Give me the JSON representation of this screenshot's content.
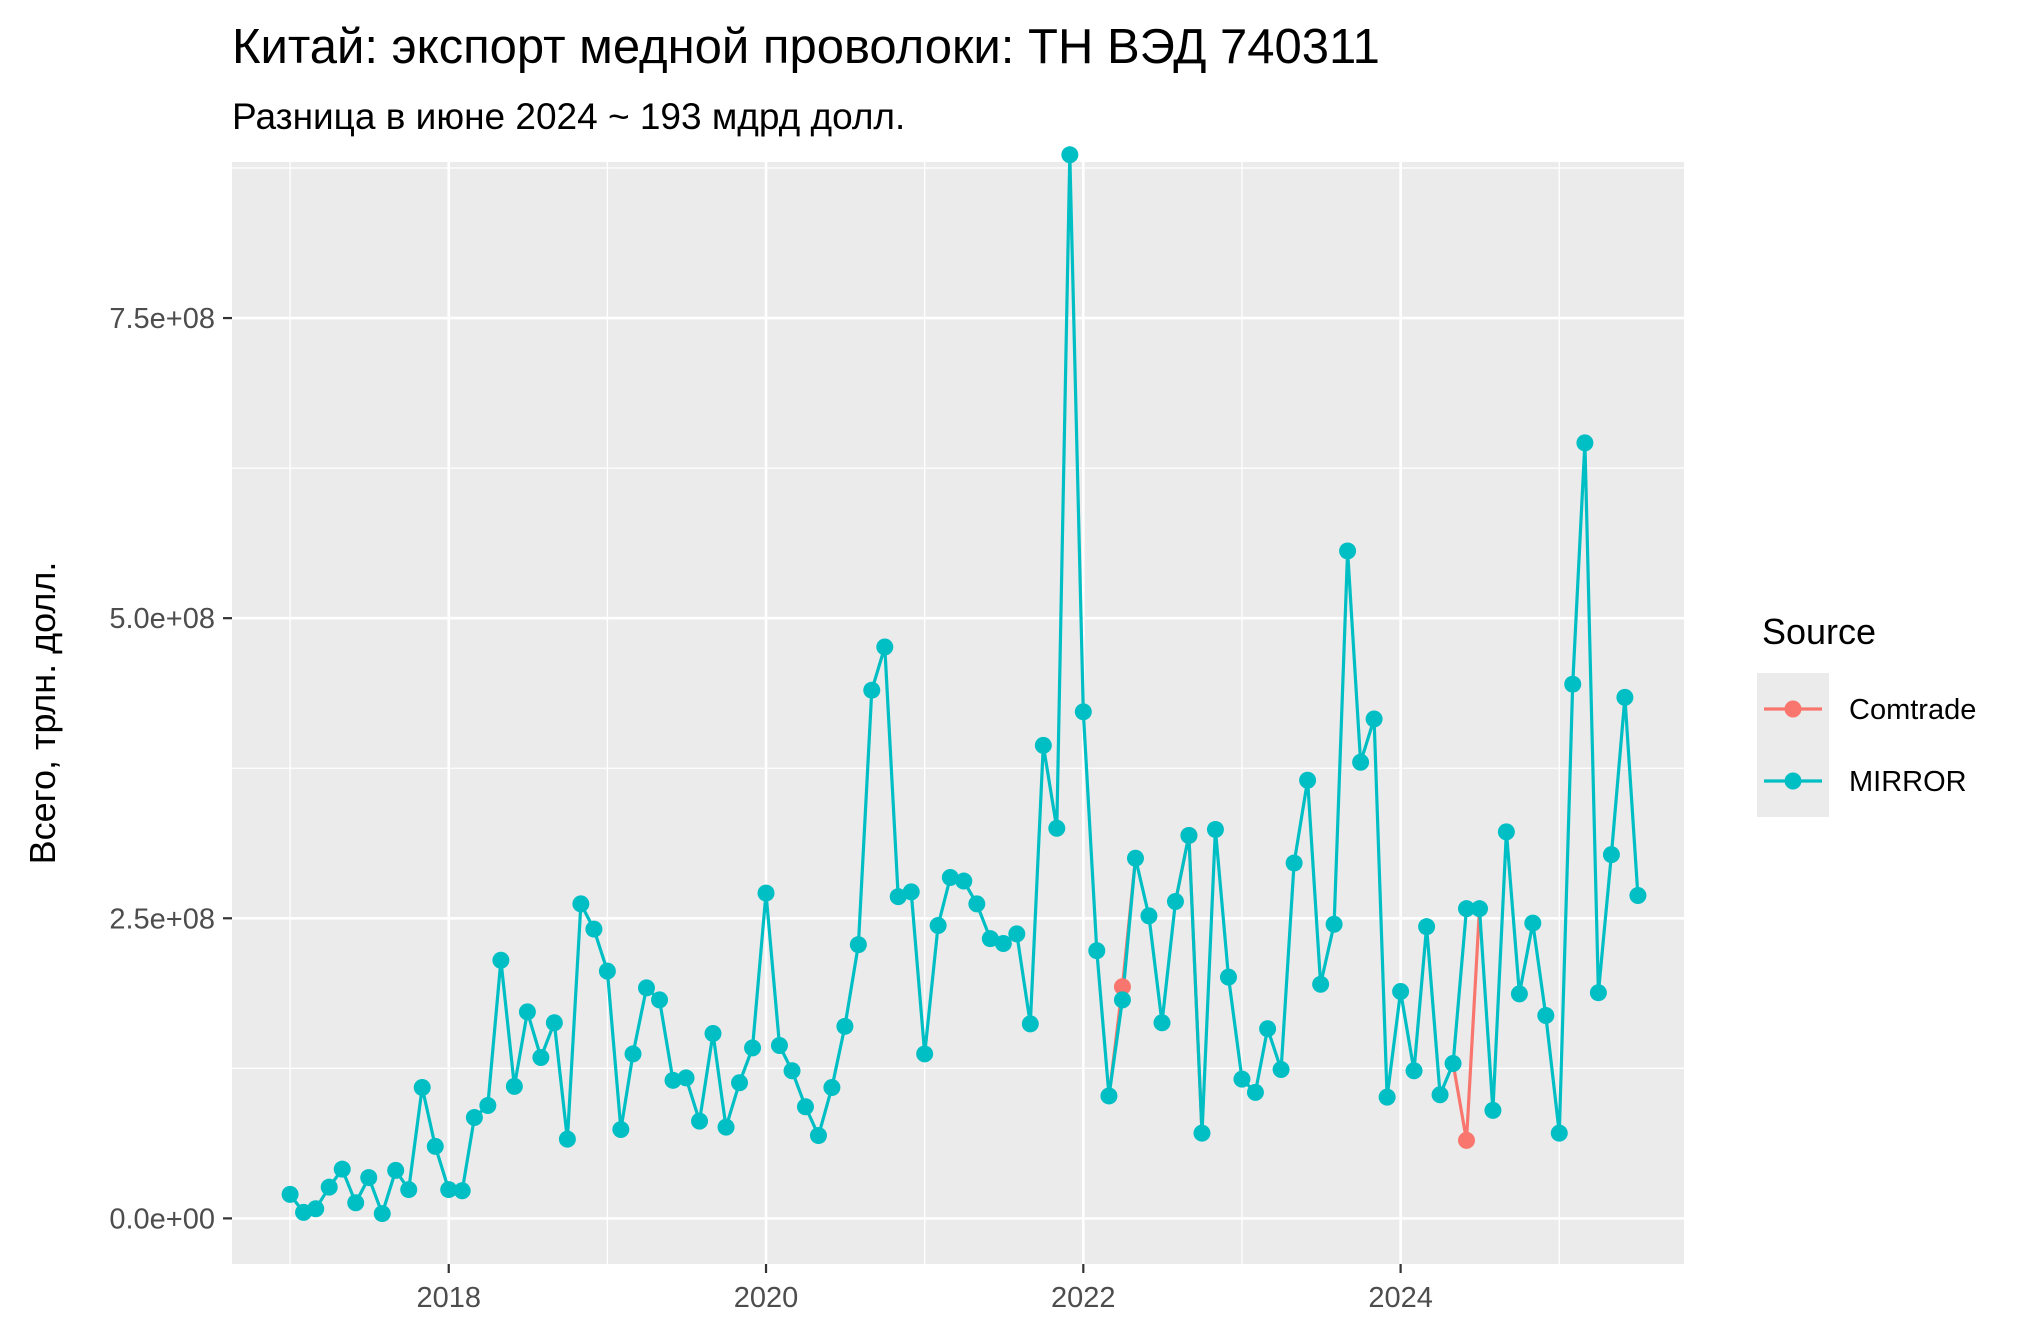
{
  "chart_data": {
    "type": "line",
    "title": "Китай: экспорт медной проволоки: ТН ВЭД 740311",
    "subtitle": "Разница в июне 2024 ~ 193 мдрд долл.",
    "xlabel": "",
    "ylabel": "Всего, трлн. долл.",
    "xlim": [
      "2016-08-20",
      "2025-10-15"
    ],
    "ylim": [
      -38000000,
      880000000
    ],
    "x_ticks": [
      "2018-01-01",
      "2020-01-01",
      "2022-01-01",
      "2024-01-01"
    ],
    "x_tick_labels": [
      "2018",
      "2020",
      "2022",
      "2024"
    ],
    "y_ticks": [
      0,
      250000000,
      500000000,
      750000000
    ],
    "y_tick_labels": [
      "0.0e+00",
      "2.5e+08",
      "5.0e+08",
      "7.5e+08"
    ],
    "grid": true,
    "legend_position": "right",
    "legend_title": "Source",
    "series": [
      {
        "name": "MIRROR",
        "color": "#00BFC4",
        "points": [
          [
            "2017-01",
            20000000
          ],
          [
            "2017-02",
            5000000
          ],
          [
            "2017-03",
            8000000
          ],
          [
            "2017-04",
            26000000
          ],
          [
            "2017-05",
            41000000
          ],
          [
            "2017-06",
            13000000
          ],
          [
            "2017-07",
            34000000
          ],
          [
            "2017-08",
            4000000
          ],
          [
            "2017-09",
            40000000
          ],
          [
            "2017-10",
            24000000
          ],
          [
            "2017-11",
            109000000
          ],
          [
            "2017-12",
            60000000
          ],
          [
            "2018-01",
            24000000
          ],
          [
            "2018-02",
            23000000
          ],
          [
            "2018-03",
            84000000
          ],
          [
            "2018-04",
            94000000
          ],
          [
            "2018-05",
            215000000
          ],
          [
            "2018-06",
            110000000
          ],
          [
            "2018-07",
            172000000
          ],
          [
            "2018-08",
            134000000
          ],
          [
            "2018-09",
            163000000
          ],
          [
            "2018-10",
            66000000
          ],
          [
            "2018-11",
            262000000
          ],
          [
            "2018-12",
            241000000
          ],
          [
            "2019-01",
            206000000
          ],
          [
            "2019-02",
            74000000
          ],
          [
            "2019-03",
            137000000
          ],
          [
            "2019-04",
            192000000
          ],
          [
            "2019-05",
            182000000
          ],
          [
            "2019-06",
            115000000
          ],
          [
            "2019-07",
            117000000
          ],
          [
            "2019-08",
            81000000
          ],
          [
            "2019-09",
            154000000
          ],
          [
            "2019-10",
            76000000
          ],
          [
            "2019-11",
            113000000
          ],
          [
            "2019-12",
            142000000
          ],
          [
            "2020-01",
            271000000
          ],
          [
            "2020-02",
            144000000
          ],
          [
            "2020-03",
            123000000
          ],
          [
            "2020-04",
            93000000
          ],
          [
            "2020-05",
            69000000
          ],
          [
            "2020-06",
            109000000
          ],
          [
            "2020-07",
            160000000
          ],
          [
            "2020-08",
            228000000
          ],
          [
            "2020-09",
            440000000
          ],
          [
            "2020-10",
            476000000
          ],
          [
            "2020-11",
            268000000
          ],
          [
            "2020-12",
            272000000
          ],
          [
            "2021-01",
            137000000
          ],
          [
            "2021-02",
            244000000
          ],
          [
            "2021-03",
            284000000
          ],
          [
            "2021-04",
            281000000
          ],
          [
            "2021-05",
            262000000
          ],
          [
            "2021-06",
            233000000
          ],
          [
            "2021-07",
            229000000
          ],
          [
            "2021-08",
            237000000
          ],
          [
            "2021-09",
            162000000
          ],
          [
            "2021-10",
            394000000
          ],
          [
            "2021-11",
            325000000
          ],
          [
            "2021-12",
            886000000
          ],
          [
            "2022-01",
            422000000
          ],
          [
            "2022-02",
            223000000
          ],
          [
            "2022-03",
            102000000
          ],
          [
            "2022-04",
            182000000
          ],
          [
            "2022-05",
            300000000
          ],
          [
            "2022-06",
            252000000
          ],
          [
            "2022-07",
            163000000
          ],
          [
            "2022-08",
            264000000
          ],
          [
            "2022-09",
            319000000
          ],
          [
            "2022-10",
            71000000
          ],
          [
            "2022-11",
            324000000
          ],
          [
            "2022-12",
            201000000
          ],
          [
            "2023-01",
            116000000
          ],
          [
            "2023-02",
            105000000
          ],
          [
            "2023-03",
            158000000
          ],
          [
            "2023-04",
            124000000
          ],
          [
            "2023-05",
            296000000
          ],
          [
            "2023-06",
            365000000
          ],
          [
            "2023-07",
            195000000
          ],
          [
            "2023-08",
            245000000
          ],
          [
            "2023-09",
            556000000
          ],
          [
            "2023-10",
            380000000
          ],
          [
            "2023-11",
            416000000
          ],
          [
            "2023-12",
            101000000
          ],
          [
            "2024-01",
            189000000
          ],
          [
            "2024-02",
            123000000
          ],
          [
            "2024-03",
            243000000
          ],
          [
            "2024-04",
            103000000
          ],
          [
            "2024-05",
            129000000
          ],
          [
            "2024-06",
            258000000
          ],
          [
            "2024-07",
            258000000
          ],
          [
            "2024-08",
            90000000
          ],
          [
            "2024-09",
            322000000
          ],
          [
            "2024-10",
            187000000
          ],
          [
            "2024-11",
            246000000
          ],
          [
            "2024-12",
            169000000
          ],
          [
            "2025-01",
            71000000
          ],
          [
            "2025-02",
            445000000
          ],
          [
            "2025-03",
            646000000
          ],
          [
            "2025-04",
            188000000
          ],
          [
            "2025-05",
            303000000
          ],
          [
            "2025-06",
            434000000
          ],
          [
            "2025-07",
            269000000
          ]
        ]
      },
      {
        "name": "Comtrade",
        "color": "#F8766D",
        "segments": [
          [
            [
              "2022-03",
              102000000
            ],
            [
              "2022-04",
              193000000
            ],
            [
              "2022-05",
              300000000
            ]
          ],
          [
            [
              "2022-08",
              264000000
            ],
            [
              "2022-09",
              319000000
            ],
            [
              "2022-10",
              71000000
            ]
          ],
          [
            [
              "2024-05",
              129000000
            ],
            [
              "2024-06",
              65000000
            ],
            [
              "2024-07",
              258000000
            ]
          ]
        ],
        "points": [
          [
            "2022-04",
            193000000
          ],
          [
            "2022-09",
            319000000
          ],
          [
            "2024-06",
            65000000
          ]
        ]
      }
    ]
  }
}
